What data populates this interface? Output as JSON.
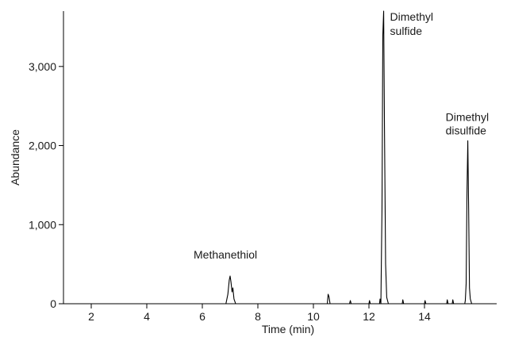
{
  "chart_data": {
    "type": "line",
    "title": "",
    "xlabel": "Time (min)",
    "ylabel": "Abundance",
    "xlim": [
      1.0,
      16.6
    ],
    "ylim": [
      0,
      3700
    ],
    "xticks": [
      2,
      4,
      6,
      8,
      10,
      12,
      14
    ],
    "yticks": [
      0,
      1000,
      2000,
      3000
    ],
    "ytick_labels": [
      "0",
      "1,000",
      "2,000",
      "3,000"
    ],
    "grid": false,
    "series": [
      {
        "color": "#000000",
        "x": [
          1.0,
          6.85,
          6.92,
          6.97,
          7.0,
          7.03,
          7.07,
          7.1,
          7.14,
          7.2,
          10.5,
          10.53,
          10.56,
          10.6,
          11.3,
          11.33,
          11.36,
          12.0,
          12.02,
          12.05,
          12.38,
          12.4,
          12.43,
          12.47,
          12.5,
          12.53,
          12.56,
          12.6,
          12.64,
          12.7,
          13.2,
          13.22,
          13.25,
          14.0,
          14.02,
          14.05,
          14.8,
          14.82,
          14.85,
          15.0,
          15.02,
          15.05,
          15.45,
          15.47,
          15.5,
          15.53,
          15.56,
          15.59,
          15.62,
          15.65,
          15.7,
          16.6
        ],
        "y": [
          0,
          0,
          120,
          300,
          350,
          280,
          150,
          200,
          60,
          0,
          0,
          120,
          90,
          0,
          0,
          40,
          0,
          0,
          40,
          0,
          0,
          60,
          0,
          1200,
          3400,
          3700,
          2200,
          500,
          80,
          0,
          0,
          50,
          0,
          0,
          40,
          0,
          0,
          50,
          0,
          0,
          50,
          0,
          0,
          40,
          250,
          1400,
          2060,
          1200,
          200,
          60,
          0,
          0
        ]
      }
    ],
    "annotations": [
      {
        "text": "Methanethiol",
        "x": 7.0,
        "y": 350
      },
      {
        "text": "Dimethyl",
        "x": 12.53,
        "y": 3700
      },
      {
        "text": "sulfide",
        "x": 12.53,
        "y": 3700
      },
      {
        "text": "Dimethyl",
        "x": 15.56,
        "y": 2060
      },
      {
        "text": "disulfide",
        "x": 15.56,
        "y": 2060
      }
    ]
  }
}
